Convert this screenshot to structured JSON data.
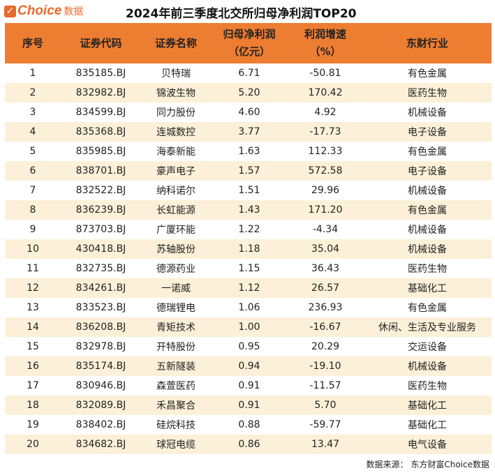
{
  "brand": {
    "name": "Choice",
    "suffix": "数据",
    "watermark": "东方财富Choice数据"
  },
  "title": "2024年前三季度北交所归母净利润TOP20",
  "headers": [
    "序号",
    "证券代码",
    "证券名称",
    "归母净利润（亿元）",
    "利润增速（%）",
    "东财行业"
  ],
  "header_lines": {
    "h3a": "归母净利润",
    "h3b": "（亿元）",
    "h4a": "利润增速",
    "h4b": "（%）"
  },
  "rows": [
    [
      "1",
      "835185.BJ",
      "贝特瑞",
      "6.71",
      "-50.81",
      "有色金属"
    ],
    [
      "2",
      "832982.BJ",
      "锦波生物",
      "5.20",
      "170.42",
      "医药生物"
    ],
    [
      "3",
      "834599.BJ",
      "同力股份",
      "4.60",
      "4.92",
      "机械设备"
    ],
    [
      "4",
      "835368.BJ",
      "连城数控",
      "3.77",
      "-17.73",
      "电子设备"
    ],
    [
      "5",
      "835985.BJ",
      "海泰新能",
      "1.63",
      "112.33",
      "有色金属"
    ],
    [
      "6",
      "838701.BJ",
      "豪声电子",
      "1.57",
      "572.58",
      "电子设备"
    ],
    [
      "7",
      "832522.BJ",
      "纳科诺尔",
      "1.51",
      "29.96",
      "机械设备"
    ],
    [
      "8",
      "836239.BJ",
      "长虹能源",
      "1.43",
      "171.20",
      "有色金属"
    ],
    [
      "9",
      "873703.BJ",
      "广厦环能",
      "1.22",
      "-4.34",
      "机械设备"
    ],
    [
      "10",
      "430418.BJ",
      "苏轴股份",
      "1.18",
      "35.04",
      "机械设备"
    ],
    [
      "11",
      "832735.BJ",
      "德源药业",
      "1.15",
      "36.43",
      "医药生物"
    ],
    [
      "12",
      "834261.BJ",
      "一诺威",
      "1.12",
      "26.57",
      "基础化工"
    ],
    [
      "13",
      "833523.BJ",
      "德瑞锂电",
      "1.06",
      "236.93",
      "有色金属"
    ],
    [
      "14",
      "836208.BJ",
      "青矩技术",
      "1.00",
      "-16.67",
      "休闲、生活及专业服务"
    ],
    [
      "15",
      "832978.BJ",
      "开特股份",
      "0.95",
      "20.29",
      "交运设备"
    ],
    [
      "16",
      "835174.BJ",
      "五新隧装",
      "0.94",
      "-19.10",
      "机械设备"
    ],
    [
      "17",
      "830946.BJ",
      "森萱医药",
      "0.91",
      "-11.57",
      "医药生物"
    ],
    [
      "18",
      "832089.BJ",
      "禾昌聚合",
      "0.91",
      "5.70",
      "基础化工"
    ],
    [
      "19",
      "838402.BJ",
      "硅烷科技",
      "0.88",
      "-59.77",
      "基础化工"
    ],
    [
      "20",
      "834682.BJ",
      "球冠电缆",
      "0.86",
      "13.47",
      "电气设备"
    ]
  ],
  "footer": "数据来源： 东方财富Choice数据",
  "colors": {
    "header": "#ed7d31",
    "stripe": "#fcf0d8",
    "brand": "#e8692a"
  }
}
